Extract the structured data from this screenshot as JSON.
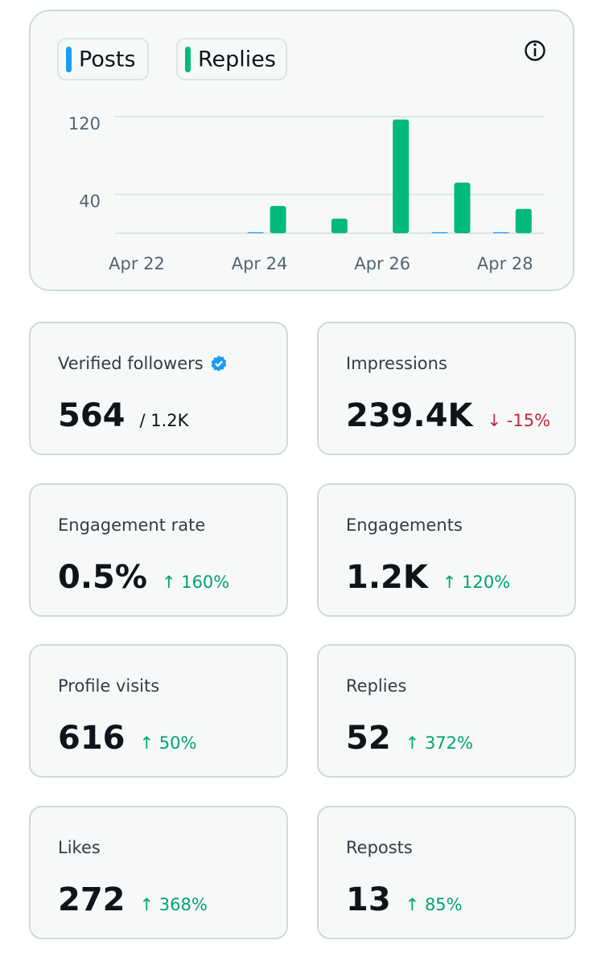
{
  "chart_data": {
    "type": "bar",
    "categories": [
      "Apr 22",
      null,
      "Apr 24",
      null,
      "Apr 26",
      null,
      "Apr 28"
    ],
    "series": [
      {
        "name": "Posts",
        "color": "#1d9bf0",
        "values": [
          0,
          0,
          1,
          0,
          0,
          1,
          1
        ]
      },
      {
        "name": "Replies",
        "color": "#00ba7c",
        "values": [
          0,
          0,
          28,
          15,
          117,
          52,
          25
        ]
      }
    ],
    "ylim": [
      0,
      120
    ],
    "yticks": [
      40,
      120
    ],
    "grid": true
  },
  "cards": [
    {
      "title": "Verified followers",
      "value": "564",
      "note": "/ 1.2K"
    },
    {
      "title": "Impressions",
      "value": "239.4K",
      "change": "↓ -15%"
    },
    {
      "title": "Engagement rate",
      "value": "0.5%",
      "change": "↑ 160%"
    },
    {
      "title": "Engagements",
      "value": "1.2K",
      "change": "↑ 120%"
    },
    {
      "title": "Profile visits",
      "value": "616",
      "change": "↑ 50%"
    },
    {
      "title": "Replies",
      "value": "52",
      "change": "↑ 372%"
    },
    {
      "title": "Likes",
      "value": "272",
      "change": "↑ 368%"
    },
    {
      "title": "Reposts",
      "value": "13",
      "change": "↑ 85%"
    }
  ]
}
